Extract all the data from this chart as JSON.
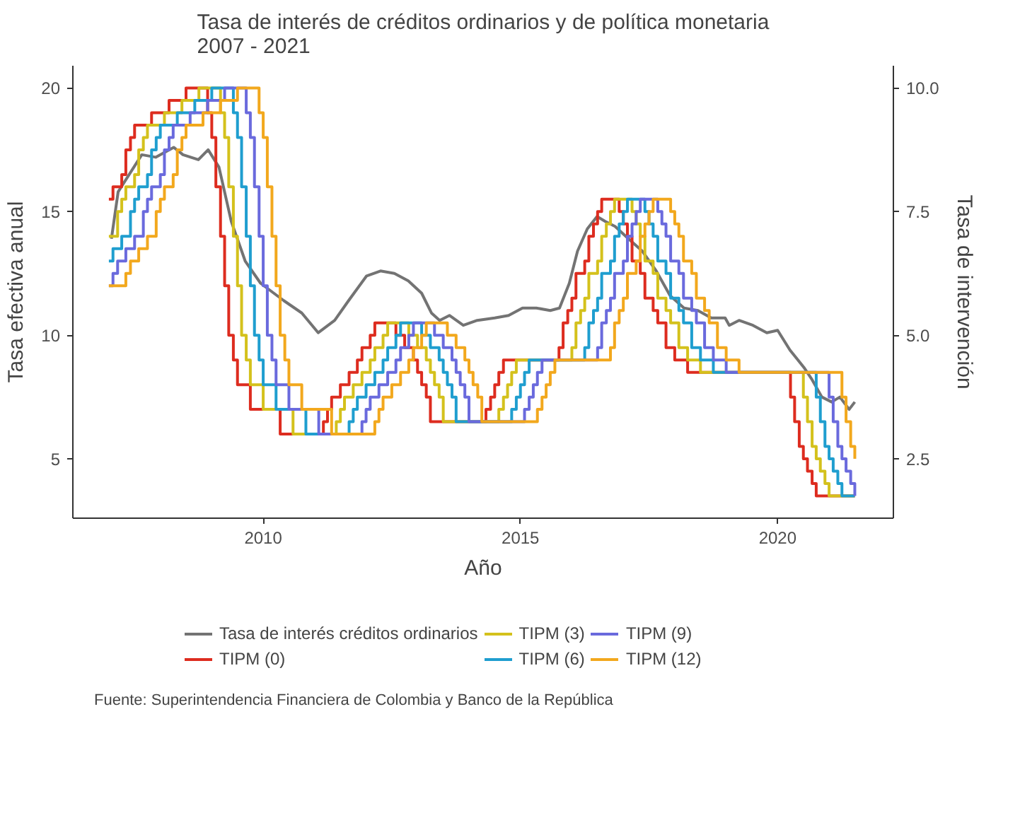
{
  "chart_data": {
    "type": "step",
    "title": "Tasa de interés de créditos ordinarios y de política monetaria\n2007 - 2021",
    "xlabel": "Año",
    "ylabel": "Tasa efectiva anual",
    "y2label": "Tasa de intervención",
    "xlim": [
      2006.3,
      2022.25
    ],
    "xticks": [
      2010,
      2015,
      2020
    ],
    "ylim": [
      2.6,
      20.9
    ],
    "yticks": [
      5,
      10,
      15,
      20
    ],
    "y2lim": [
      1.3,
      10.45
    ],
    "y2ticks": [
      {
        "value": 2.5,
        "label": "2.5"
      },
      {
        "value": 5,
        "label": "5.0"
      },
      {
        "value": 7.5,
        "label": "7.5"
      },
      {
        "value": 10,
        "label": "10.0"
      }
    ],
    "legend": "bottom",
    "annotations": [
      "Fuente: Superintendencia Financiera de Colombia y Banco de la República"
    ],
    "series": [
      {
        "name": "Tasa de interés créditos ordinarios",
        "type": "line",
        "color": "#737373",
        "x": [
          2007.05,
          2007.18,
          2007.64,
          2007.91,
          2008.26,
          2008.44,
          2008.74,
          2008.93,
          2009.14,
          2009.38,
          2009.65,
          2009.95,
          2010.4,
          2010.75,
          2011.07,
          2011.39,
          2011.66,
          2012.01,
          2012.28,
          2012.55,
          2012.82,
          2013.08,
          2013.27,
          2013.43,
          2013.62,
          2013.89,
          2014.16,
          2014.5,
          2014.77,
          2015.04,
          2015.31,
          2015.58,
          2015.76,
          2015.95,
          2016.11,
          2016.3,
          2016.49,
          2016.65,
          2016.84,
          2017.1,
          2017.37,
          2017.64,
          2017.91,
          2018.18,
          2018.45,
          2018.71,
          2018.98,
          2019.06,
          2019.25,
          2019.52,
          2019.79,
          2020.0,
          2020.24,
          2020.51,
          2020.67,
          2020.86,
          2021.05,
          2021.21,
          2021.39,
          2021.5
        ],
        "values": [
          13.9,
          15.8,
          17.3,
          17.2,
          17.6,
          17.3,
          17.1,
          17.5,
          16.8,
          14.6,
          13.0,
          12.1,
          11.4,
          10.9,
          10.1,
          10.6,
          11.4,
          12.4,
          12.6,
          12.5,
          12.2,
          11.7,
          10.9,
          10.6,
          10.8,
          10.4,
          10.6,
          10.7,
          10.8,
          11.1,
          11.1,
          11.0,
          11.1,
          12.1,
          13.4,
          14.3,
          14.8,
          14.6,
          14.4,
          13.9,
          13.4,
          12.6,
          11.6,
          11.1,
          11.0,
          10.7,
          10.7,
          10.4,
          10.6,
          10.4,
          10.1,
          10.2,
          9.4,
          8.7,
          8.2,
          7.5,
          7.3,
          7.5,
          7.0,
          7.3
        ]
      },
      {
        "name": "TIPM (0)",
        "axis": "y2",
        "color": "#dd2c1f",
        "x": [
          2007.0,
          2007.08,
          2007.25,
          2007.33,
          2007.42,
          2007.5,
          2007.83,
          2008.17,
          2008.5,
          2008.92,
          2009.0,
          2009.08,
          2009.17,
          2009.25,
          2009.33,
          2009.42,
          2009.5,
          2009.75,
          2010.33,
          2011.17,
          2011.25,
          2011.33,
          2011.5,
          2011.67,
          2011.83,
          2011.92,
          2012.08,
          2012.17,
          2012.58,
          2012.75,
          2012.92,
          2013.0,
          2013.08,
          2013.17,
          2013.25,
          2014.33,
          2014.42,
          2014.5,
          2014.58,
          2014.67,
          2015.75,
          2015.83,
          2015.92,
          2016.0,
          2016.08,
          2016.25,
          2016.33,
          2016.42,
          2016.5,
          2016.58,
          2016.92,
          2017.0,
          2017.08,
          2017.17,
          2017.33,
          2017.42,
          2017.58,
          2017.67,
          2017.83,
          2018.0,
          2018.25,
          2020.25,
          2020.33,
          2020.42,
          2020.5,
          2020.58,
          2020.67,
          2020.75,
          2021.5
        ],
        "values": [
          7.75,
          8.0,
          8.25,
          8.75,
          9.0,
          9.25,
          9.5,
          9.75,
          10.0,
          9.5,
          9.0,
          8.0,
          7.0,
          6.0,
          5.0,
          4.5,
          4.0,
          3.5,
          3.0,
          3.25,
          3.5,
          3.75,
          4.0,
          4.25,
          4.5,
          4.75,
          5.0,
          5.25,
          5.0,
          4.75,
          4.5,
          4.25,
          4.0,
          3.75,
          3.25,
          3.5,
          3.75,
          4.0,
          4.25,
          4.5,
          4.75,
          5.25,
          5.5,
          5.75,
          6.25,
          6.5,
          7.0,
          7.25,
          7.5,
          7.75,
          7.5,
          7.25,
          7.0,
          6.5,
          6.25,
          5.75,
          5.5,
          5.25,
          4.75,
          4.5,
          4.25,
          3.75,
          3.25,
          2.75,
          2.5,
          2.25,
          2.0,
          1.75,
          1.75
        ]
      },
      {
        "name": "TIPM (3)",
        "axis": "y2",
        "color": "#d4c11c",
        "x": [
          2007.0,
          2007.17,
          2007.25,
          2007.33,
          2007.5,
          2007.58,
          2007.67,
          2007.75,
          2008.08,
          2008.42,
          2008.75,
          2009.17,
          2009.25,
          2009.33,
          2009.42,
          2009.5,
          2009.58,
          2009.67,
          2009.75,
          2010.0,
          2010.58,
          2011.42,
          2011.5,
          2011.58,
          2011.75,
          2011.92,
          2012.08,
          2012.17,
          2012.33,
          2012.42,
          2012.83,
          2013.0,
          2013.17,
          2013.25,
          2013.33,
          2013.42,
          2013.5,
          2014.58,
          2014.67,
          2014.75,
          2014.83,
          2014.92,
          2016.0,
          2016.08,
          2016.17,
          2016.25,
          2016.33,
          2016.5,
          2016.58,
          2016.67,
          2016.75,
          2016.83,
          2017.17,
          2017.25,
          2017.33,
          2017.42,
          2017.58,
          2017.67,
          2017.83,
          2017.92,
          2018.08,
          2018.25,
          2018.5,
          2020.5,
          2020.58,
          2020.67,
          2020.75,
          2020.83,
          2020.92,
          2021.0,
          2021.5
        ],
        "values": [
          7.0,
          7.5,
          7.75,
          8.0,
          8.25,
          8.75,
          9.0,
          9.25,
          9.5,
          9.75,
          10.0,
          9.5,
          9.0,
          8.0,
          7.0,
          6.0,
          5.0,
          4.5,
          4.0,
          3.5,
          3.0,
          3.25,
          3.5,
          3.75,
          4.0,
          4.25,
          4.5,
          4.75,
          5.0,
          5.25,
          5.0,
          4.75,
          4.5,
          4.25,
          4.0,
          3.75,
          3.25,
          3.5,
          3.75,
          4.0,
          4.25,
          4.5,
          4.75,
          5.25,
          5.5,
          5.75,
          6.25,
          6.5,
          7.0,
          7.25,
          7.5,
          7.75,
          7.5,
          7.25,
          7.0,
          6.5,
          6.25,
          5.75,
          5.5,
          5.25,
          4.75,
          4.5,
          4.25,
          3.75,
          3.25,
          2.75,
          2.5,
          2.25,
          2.0,
          1.75,
          1.75
        ]
      },
      {
        "name": "TIPM (6)",
        "axis": "y2",
        "color": "#1f9ecf",
        "x": [
          2007.0,
          2007.08,
          2007.25,
          2007.42,
          2007.5,
          2007.58,
          2007.75,
          2007.83,
          2007.92,
          2008.0,
          2008.33,
          2008.67,
          2009.0,
          2009.42,
          2009.5,
          2009.58,
          2009.67,
          2009.75,
          2009.83,
          2009.92,
          2010.0,
          2010.25,
          2010.83,
          2011.67,
          2011.75,
          2011.83,
          2012.0,
          2012.17,
          2012.33,
          2012.42,
          2012.58,
          2012.67,
          2013.08,
          2013.25,
          2013.42,
          2013.5,
          2013.58,
          2013.67,
          2013.75,
          2014.83,
          2014.92,
          2015.0,
          2015.08,
          2015.17,
          2016.25,
          2016.33,
          2016.42,
          2016.5,
          2016.58,
          2016.75,
          2016.83,
          2016.92,
          2017.0,
          2017.08,
          2017.42,
          2017.5,
          2017.58,
          2017.67,
          2017.83,
          2017.92,
          2018.08,
          2018.17,
          2018.33,
          2018.5,
          2018.75,
          2020.75,
          2020.83,
          2020.92,
          2021.0,
          2021.08,
          2021.17,
          2021.25,
          2021.5
        ],
        "values": [
          6.5,
          6.75,
          7.0,
          7.5,
          7.75,
          8.0,
          8.25,
          8.75,
          9.0,
          9.25,
          9.5,
          9.75,
          10.0,
          9.5,
          9.0,
          8.0,
          7.0,
          6.0,
          5.0,
          4.5,
          4.0,
          3.5,
          3.0,
          3.25,
          3.5,
          3.75,
          4.0,
          4.25,
          4.5,
          4.75,
          5.0,
          5.25,
          5.0,
          4.75,
          4.5,
          4.25,
          4.0,
          3.75,
          3.25,
          3.5,
          3.75,
          4.0,
          4.25,
          4.5,
          4.75,
          5.25,
          5.5,
          5.75,
          6.25,
          6.5,
          7.0,
          7.25,
          7.5,
          7.75,
          7.5,
          7.25,
          7.0,
          6.5,
          6.25,
          5.75,
          5.5,
          5.25,
          4.75,
          4.5,
          4.25,
          3.75,
          3.25,
          2.75,
          2.5,
          2.25,
          2.0,
          1.75,
          1.75
        ]
      },
      {
        "name": "TIPM (9)",
        "axis": "y2",
        "color": "#6a6add",
        "x": [
          2007.0,
          2007.08,
          2007.17,
          2007.33,
          2007.5,
          2007.67,
          2007.75,
          2007.83,
          2008.0,
          2008.08,
          2008.17,
          2008.25,
          2008.58,
          2008.92,
          2009.25,
          2009.67,
          2009.75,
          2009.83,
          2009.92,
          2010.0,
          2010.08,
          2010.17,
          2010.25,
          2010.5,
          2011.08,
          2011.92,
          2012.0,
          2012.08,
          2012.25,
          2012.42,
          2012.58,
          2012.67,
          2012.83,
          2012.92,
          2013.33,
          2013.5,
          2013.67,
          2013.75,
          2013.83,
          2013.92,
          2014.0,
          2015.08,
          2015.17,
          2015.25,
          2015.33,
          2015.42,
          2016.5,
          2016.58,
          2016.67,
          2016.75,
          2016.83,
          2017.0,
          2017.08,
          2017.17,
          2017.25,
          2017.33,
          2017.67,
          2017.75,
          2017.83,
          2017.92,
          2018.08,
          2018.17,
          2018.33,
          2018.42,
          2018.58,
          2018.75,
          2019.0,
          2021.0,
          2021.08,
          2021.17,
          2021.25,
          2021.33,
          2021.42,
          2021.5
        ],
        "values": [
          6.0,
          6.25,
          6.5,
          6.75,
          7.0,
          7.5,
          7.75,
          8.0,
          8.25,
          8.75,
          9.0,
          9.25,
          9.5,
          9.75,
          10.0,
          9.5,
          9.0,
          8.0,
          7.0,
          6.0,
          5.0,
          4.5,
          4.0,
          3.5,
          3.0,
          3.25,
          3.5,
          3.75,
          4.0,
          4.25,
          4.5,
          4.75,
          5.0,
          5.25,
          5.0,
          4.75,
          4.5,
          4.25,
          4.0,
          3.75,
          3.25,
          3.5,
          3.75,
          4.0,
          4.25,
          4.5,
          4.75,
          5.25,
          5.5,
          5.75,
          6.25,
          6.5,
          7.0,
          7.25,
          7.5,
          7.75,
          7.5,
          7.25,
          7.0,
          6.5,
          6.25,
          5.75,
          5.5,
          5.25,
          4.75,
          4.5,
          4.25,
          3.75,
          3.25,
          2.75,
          2.5,
          2.25,
          2.0,
          1.75
        ]
      },
      {
        "name": "TIPM (12)",
        "axis": "y2",
        "color": "#f2a81d",
        "x": [
          2007.0,
          2007.33,
          2007.42,
          2007.58,
          2007.75,
          2007.92,
          2008.0,
          2008.08,
          2008.25,
          2008.33,
          2008.42,
          2008.5,
          2008.83,
          2009.17,
          2009.5,
          2009.92,
          2010.0,
          2010.08,
          2010.17,
          2010.25,
          2010.33,
          2010.42,
          2010.5,
          2010.75,
          2011.33,
          2012.17,
          2012.25,
          2012.33,
          2012.5,
          2012.67,
          2012.83,
          2012.92,
          2013.08,
          2013.17,
          2013.58,
          2013.75,
          2013.92,
          2014.0,
          2014.08,
          2014.17,
          2014.25,
          2015.33,
          2015.42,
          2015.5,
          2015.58,
          2015.67,
          2016.75,
          2016.83,
          2016.92,
          2017.0,
          2017.08,
          2017.25,
          2017.33,
          2017.42,
          2017.5,
          2017.58,
          2017.92,
          2018.0,
          2018.08,
          2018.17,
          2018.33,
          2018.42,
          2018.58,
          2018.67,
          2018.83,
          2019.0,
          2019.25,
          2021.25,
          2021.33,
          2021.42,
          2021.5
        ],
        "values": [
          6.0,
          6.25,
          6.5,
          6.75,
          7.0,
          7.5,
          7.75,
          8.0,
          8.25,
          8.75,
          9.0,
          9.25,
          9.5,
          9.75,
          10.0,
          9.5,
          9.0,
          8.0,
          7.0,
          6.0,
          5.0,
          4.5,
          4.0,
          3.5,
          3.0,
          3.25,
          3.5,
          3.75,
          4.0,
          4.25,
          4.5,
          4.75,
          5.0,
          5.25,
          5.0,
          4.75,
          4.5,
          4.25,
          4.0,
          3.75,
          3.25,
          3.5,
          3.75,
          4.0,
          4.25,
          4.5,
          4.75,
          5.25,
          5.5,
          5.75,
          6.25,
          6.5,
          7.0,
          7.25,
          7.5,
          7.75,
          7.5,
          7.25,
          7.0,
          6.5,
          6.25,
          5.75,
          5.5,
          5.25,
          4.75,
          4.5,
          4.25,
          3.75,
          3.25,
          2.75,
          2.5
        ]
      }
    ]
  }
}
